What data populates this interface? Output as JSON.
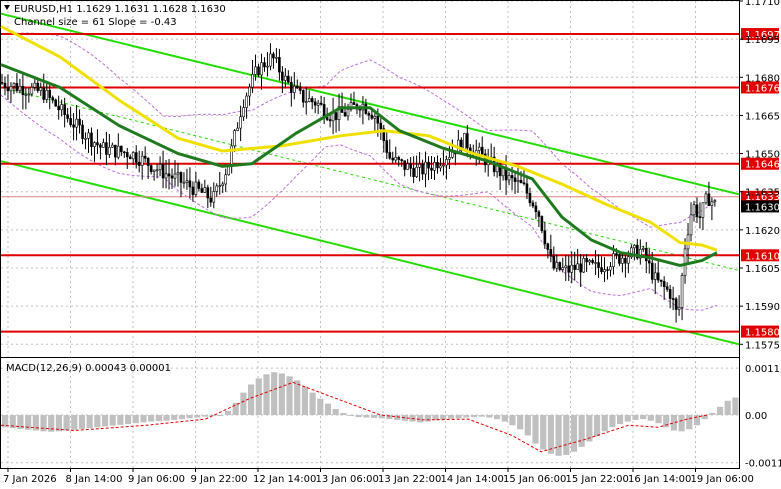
{
  "header": {
    "symbol_line": "EURUSD,H1  1.1629 1.1631 1.1628 1.1630",
    "channel_line": "Channel size = 61 Slope = -0.43"
  },
  "macd": {
    "label": "MACD(12,26,9) 0.00043 0.00001",
    "axis_labels": [
      "0.00115",
      "0.00",
      "-0.00117"
    ]
  },
  "colors": {
    "level": "#e00000",
    "channel": "#22dd00",
    "ma_fast": "#1f7a1f",
    "ma_slow": "#f0e000",
    "bollinger": "#c070e0",
    "candle": "#000000",
    "macd_hist": "#c0c0c0",
    "macd_signal": "#e00000",
    "current_price_bg": "#000000"
  },
  "chart_data": {
    "type": "line",
    "symbol": "EURUSD",
    "timeframe": "H1",
    "ylim": [
      1.157,
      1.171
    ],
    "y_ticks": [
      "1.1710",
      "1.1695",
      "1.1680",
      "1.1665",
      "1.1650",
      "1.1635",
      "1.1620",
      "1.1605",
      "1.1590",
      "1.1575"
    ],
    "x_ticks": [
      "7 Jan 2026",
      "8 Jan 14:00",
      "9 Jan 06:00",
      "9 Jan 22:00",
      "12 Jan 14:00",
      "13 Jan 06:00",
      "13 Jan 22:00",
      "14 Jan 14:00",
      "15 Jan 06:00",
      "15 Jan 22:00",
      "16 Jan 14:00",
      "19 Jan 06:00"
    ],
    "levels": [
      {
        "value": 1.1697,
        "label": "1.1697"
      },
      {
        "value": 1.1676,
        "label": "1.1676"
      },
      {
        "value": 1.1646,
        "label": "1.1646"
      },
      {
        "value": 1.161,
        "label": "1.1610"
      },
      {
        "value": 1.158,
        "label": "1.1580"
      }
    ],
    "current_price": {
      "value": 1.163,
      "label": "1.1630"
    },
    "ask_price": {
      "value": 1.1633,
      "label": "1.1633"
    },
    "price_path": [
      {
        "t": 0,
        "close": 1.1678
      },
      {
        "t": 6,
        "close": 1.1674
      },
      {
        "t": 10,
        "close": 1.1662
      },
      {
        "t": 14,
        "close": 1.1652
      },
      {
        "t": 18,
        "close": 1.165
      },
      {
        "t": 22,
        "close": 1.1643
      },
      {
        "t": 26,
        "close": 1.1637
      },
      {
        "t": 29,
        "close": 1.1632
      },
      {
        "t": 31,
        "close": 1.1645
      },
      {
        "t": 33,
        "close": 1.167
      },
      {
        "t": 35,
        "close": 1.1683
      },
      {
        "t": 37,
        "close": 1.1688
      },
      {
        "t": 39,
        "close": 1.1678
      },
      {
        "t": 41,
        "close": 1.1672
      },
      {
        "t": 43,
        "close": 1.167
      },
      {
        "t": 45,
        "close": 1.1665
      },
      {
        "t": 47,
        "close": 1.1666
      },
      {
        "t": 49,
        "close": 1.167
      },
      {
        "t": 51,
        "close": 1.1665
      },
      {
        "t": 53,
        "close": 1.1648
      },
      {
        "t": 55,
        "close": 1.1645
      },
      {
        "t": 57,
        "close": 1.1643
      },
      {
        "t": 59,
        "close": 1.1646
      },
      {
        "t": 61,
        "close": 1.165
      },
      {
        "t": 63,
        "close": 1.1655
      },
      {
        "t": 65,
        "close": 1.165
      },
      {
        "t": 67,
        "close": 1.1645
      },
      {
        "t": 69,
        "close": 1.164
      },
      {
        "t": 71,
        "close": 1.1637
      },
      {
        "t": 73,
        "close": 1.1628
      },
      {
        "t": 75,
        "close": 1.1605
      },
      {
        "t": 77,
        "close": 1.1604
      },
      {
        "t": 79,
        "close": 1.1606
      },
      {
        "t": 81,
        "close": 1.1605
      },
      {
        "t": 83,
        "close": 1.1608
      },
      {
        "t": 85,
        "close": 1.161
      },
      {
        "t": 87,
        "close": 1.1612
      },
      {
        "t": 89,
        "close": 1.16
      },
      {
        "t": 91,
        "close": 1.1595
      },
      {
        "t": 92,
        "close": 1.1585
      },
      {
        "t": 93,
        "close": 1.1615
      },
      {
        "t": 94,
        "close": 1.163
      },
      {
        "t": 95,
        "close": 1.1625
      },
      {
        "t": 96,
        "close": 1.1633
      },
      {
        "t": 97,
        "close": 1.163
      }
    ],
    "ma_fast": [
      {
        "t": 0,
        "v": 1.1685
      },
      {
        "t": 8,
        "v": 1.1676
      },
      {
        "t": 16,
        "v": 1.1661
      },
      {
        "t": 24,
        "v": 1.165
      },
      {
        "t": 30,
        "v": 1.1645
      },
      {
        "t": 34,
        "v": 1.1646
      },
      {
        "t": 40,
        "v": 1.1658
      },
      {
        "t": 46,
        "v": 1.1668
      },
      {
        "t": 50,
        "v": 1.1668
      },
      {
        "t": 54,
        "v": 1.1659
      },
      {
        "t": 60,
        "v": 1.1652
      },
      {
        "t": 66,
        "v": 1.1647
      },
      {
        "t": 72,
        "v": 1.164
      },
      {
        "t": 76,
        "v": 1.1625
      },
      {
        "t": 80,
        "v": 1.1616
      },
      {
        "t": 84,
        "v": 1.1611
      },
      {
        "t": 88,
        "v": 1.1609
      },
      {
        "t": 92,
        "v": 1.1606
      },
      {
        "t": 95,
        "v": 1.1608
      },
      {
        "t": 97,
        "v": 1.1611
      }
    ],
    "ma_slow": [
      {
        "t": 0,
        "v": 1.17
      },
      {
        "t": 8,
        "v": 1.1688
      },
      {
        "t": 16,
        "v": 1.1671
      },
      {
        "t": 24,
        "v": 1.1656
      },
      {
        "t": 30,
        "v": 1.1651
      },
      {
        "t": 38,
        "v": 1.1653
      },
      {
        "t": 46,
        "v": 1.1657
      },
      {
        "t": 52,
        "v": 1.1659
      },
      {
        "t": 58,
        "v": 1.1657
      },
      {
        "t": 64,
        "v": 1.165
      },
      {
        "t": 70,
        "v": 1.1645
      },
      {
        "t": 76,
        "v": 1.1638
      },
      {
        "t": 82,
        "v": 1.163
      },
      {
        "t": 88,
        "v": 1.1623
      },
      {
        "t": 92,
        "v": 1.1615
      },
      {
        "t": 95,
        "v": 1.1614
      },
      {
        "t": 97,
        "v": 1.1612
      }
    ],
    "channel": {
      "upper": [
        {
          "t": 0,
          "v": 1.1705
        },
        {
          "t": 100,
          "v": 1.1634
        }
      ],
      "lower": [
        {
          "t": 0,
          "v": 1.1647
        },
        {
          "t": 100,
          "v": 1.1575
        }
      ],
      "mid_dashed": [
        {
          "t": 0,
          "v": 1.1676
        },
        {
          "t": 100,
          "v": 1.1604
        }
      ]
    },
    "macd_hist": [
      -0.0003,
      -0.00032,
      -0.00034,
      -0.00036,
      -0.00038,
      -0.0004,
      -0.00041,
      -0.0004,
      -0.00038,
      -0.00036,
      -0.00034,
      -0.00032,
      -0.0003,
      -0.00028,
      -0.00026,
      -0.00024,
      -0.00022,
      -0.0002,
      -0.00018,
      -0.00016,
      -0.00015,
      -0.00014,
      -0.00012,
      -0.0001,
      -8e-05,
      -6e-05,
      -4e-05,
      -2e-05,
      0.0,
      0.0001,
      0.0003,
      0.00055,
      0.00075,
      0.0009,
      0.001,
      0.00105,
      0.00102,
      0.00095,
      0.00085,
      0.0007,
      0.00055,
      0.0004,
      0.00028,
      0.00015,
      5e-05,
      -2e-05,
      -5e-05,
      -6e-05,
      -7e-05,
      -8e-05,
      -0.0001,
      -0.00012,
      -0.00014,
      -0.00016,
      -0.00018,
      -0.00016,
      -0.00013,
      -0.00011,
      -9e-05,
      -8e-05,
      -6e-05,
      -5e-05,
      -4e-05,
      -6e-05,
      -0.0001,
      -0.00016,
      -0.00025,
      -0.00035,
      -0.0005,
      -0.0007,
      -0.00085,
      -0.00095,
      -0.001,
      -0.00098,
      -0.0009,
      -0.00078,
      -0.00065,
      -0.00052,
      -0.0004,
      -0.0003,
      -0.00022,
      -0.00016,
      -0.00012,
      -0.0001,
      -0.00014,
      -0.0002,
      -0.0003,
      -0.00038,
      -0.0004,
      -0.00035,
      -0.00025,
      -0.0001,
      5e-05,
      0.0002,
      0.00035,
      0.00043
    ],
    "macd_signal": [
      {
        "t": 0,
        "v": -0.00025
      },
      {
        "t": 10,
        "v": -0.00038
      },
      {
        "t": 20,
        "v": -0.00025
      },
      {
        "t": 28,
        "v": -0.0001
      },
      {
        "t": 34,
        "v": 0.0004
      },
      {
        "t": 40,
        "v": 0.0008
      },
      {
        "t": 46,
        "v": 0.0004
      },
      {
        "t": 52,
        "v": 0.0
      },
      {
        "t": 58,
        "v": -0.00012
      },
      {
        "t": 64,
        "v": -0.0001
      },
      {
        "t": 70,
        "v": -0.0005
      },
      {
        "t": 74,
        "v": -0.0009
      },
      {
        "t": 80,
        "v": -0.0006
      },
      {
        "t": 86,
        "v": -0.00025
      },
      {
        "t": 90,
        "v": -0.0003
      },
      {
        "t": 94,
        "v": -0.0001
      },
      {
        "t": 97,
        "v": 1e-05
      }
    ]
  }
}
